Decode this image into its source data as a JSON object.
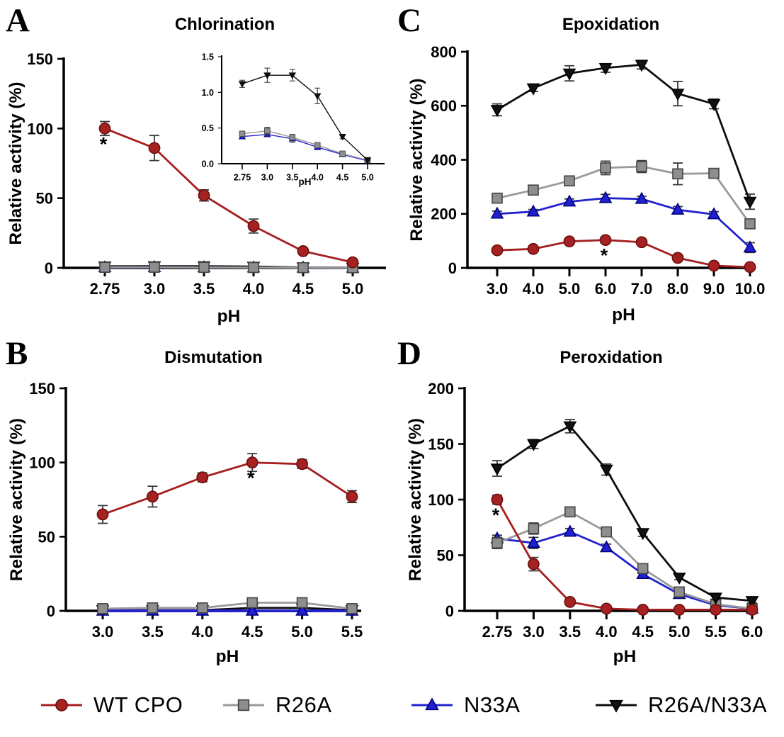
{
  "annotation_symbol": "*",
  "colors": {
    "wt_cpo": {
      "line": "#A41F1F",
      "fill": "#A62121",
      "stroke": "#6B0F0F"
    },
    "r26a": {
      "line": "#9A9A9A",
      "fill": "#8E8E8E",
      "stroke": "#454545"
    },
    "n33a": {
      "line": "#2222CE",
      "fill": "#2121D1",
      "stroke": "#000078"
    },
    "r26a_n33a": {
      "line": "#0D0D0D",
      "fill": "#111111",
      "stroke": "#000000"
    },
    "error_bar": "#3A3A3A",
    "axis": "#000000"
  },
  "legend": {
    "items": [
      {
        "label": "WT CPO",
        "color": "wt_cpo",
        "marker": "circle"
      },
      {
        "label": "R26A",
        "color": "r26a",
        "marker": "square"
      },
      {
        "label": "N33A",
        "color": "n33a",
        "marker": "triangle-up"
      },
      {
        "label": "R26A/N33A",
        "color": "r26a_n33a",
        "marker": "triangle-down"
      }
    ]
  },
  "chart_data": [
    {
      "panel": "A",
      "type": "line",
      "title": "Chlorination",
      "xlabel": "pH",
      "ylabel": "Relative activity (%)",
      "x_tick_labels": [
        "2.75",
        "3.0",
        "3.5",
        "4.0",
        "4.5",
        "5.0"
      ],
      "ylim": [
        0,
        150
      ],
      "y_ticks": [
        0,
        50,
        100,
        150
      ],
      "y_tick_labels": [
        "0",
        "50",
        "100",
        "150"
      ],
      "grid": false,
      "legend_position": "bottom-shared",
      "series": [
        {
          "name": "R26A/N33A",
          "color": "r26a_n33a",
          "marker": "triangle-down",
          "values": [
            1.12,
            1.24,
            1.24,
            0.95,
            0.38,
            0.05
          ],
          "errors": [
            0,
            0,
            0,
            0,
            0,
            0
          ]
        },
        {
          "name": "N33A",
          "color": "n33a",
          "marker": "triangle-up",
          "values": [
            0.38,
            0.41,
            0.35,
            0.23,
            0.13,
            0.04
          ],
          "errors": [
            0,
            0,
            0,
            0,
            0,
            0
          ]
        },
        {
          "name": "R26A",
          "color": "r26a",
          "marker": "square",
          "values": [
            0.42,
            0.46,
            0.37,
            0.26,
            0.14,
            0.05
          ],
          "errors": [
            0,
            0,
            0,
            0,
            0,
            0
          ]
        },
        {
          "name": "WT CPO",
          "color": "wt_cpo",
          "marker": "circle",
          "values": [
            100,
            86,
            52,
            30,
            12,
            4
          ],
          "errors": [
            5,
            9,
            4,
            5,
            2,
            1.5
          ],
          "asterisk_at": 0
        }
      ],
      "inset": {
        "type": "line",
        "xlabel": "pH",
        "x_tick_labels": [
          "2.75",
          "3.0",
          "3.5",
          "4.0",
          "4.5",
          "5.0"
        ],
        "ylim": [
          0,
          1.5
        ],
        "y_ticks": [
          0,
          0.5,
          1.0,
          1.5
        ],
        "y_tick_labels": [
          "0.0",
          "0.5",
          "1.0",
          "1.5"
        ],
        "series": [
          {
            "name": "N33A",
            "color": "n33a",
            "marker": "triangle-up",
            "values": [
              0.38,
              0.41,
              0.35,
              0.23,
              0.13,
              0.04
            ],
            "errors": [
              0.02,
              0.03,
              0.05,
              0.02,
              0.01,
              0.01
            ]
          },
          {
            "name": "R26A",
            "color": "r26a",
            "marker": "square",
            "values": [
              0.42,
              0.46,
              0.37,
              0.26,
              0.14,
              0.05
            ],
            "errors": [
              0.03,
              0.05,
              0.04,
              0.03,
              0.02,
              0.01
            ]
          },
          {
            "name": "R26A/N33A",
            "color": "r26a_n33a",
            "marker": "triangle-down",
            "values": [
              1.12,
              1.24,
              1.24,
              0.95,
              0.38,
              0.05
            ],
            "errors": [
              0.05,
              0.1,
              0.08,
              0.11,
              0.03,
              0.01
            ]
          }
        ]
      }
    },
    {
      "panel": "B",
      "type": "line",
      "title": "Dismutation",
      "xlabel": "pH",
      "ylabel": "Relative activity (%)",
      "x_tick_labels": [
        "3.0",
        "3.5",
        "4.0",
        "4.5",
        "5.0",
        "5.5"
      ],
      "ylim": [
        0,
        150
      ],
      "y_ticks": [
        0,
        50,
        100,
        150
      ],
      "y_tick_labels": [
        "0",
        "50",
        "100",
        "150"
      ],
      "grid": false,
      "series": [
        {
          "name": "R26A/N33A",
          "color": "r26a_n33a",
          "marker": "triangle-down",
          "values": [
            0.5,
            0.5,
            0.5,
            2,
            2,
            0.5
          ],
          "errors": [
            0,
            0,
            0,
            0,
            0,
            0
          ]
        },
        {
          "name": "N33A",
          "color": "n33a",
          "marker": "triangle-up",
          "values": [
            0,
            0,
            0,
            0,
            0,
            0
          ],
          "errors": [
            0,
            0,
            0,
            0,
            0,
            0
          ],
          "thick": 1.4
        },
        {
          "name": "R26A",
          "color": "r26a",
          "marker": "square",
          "values": [
            1.5,
            2,
            2,
            5.5,
            5.5,
            1.5
          ],
          "errors": [
            1.5,
            1.5,
            1.5,
            2,
            2,
            1.5
          ]
        },
        {
          "name": "WT CPO",
          "color": "wt_cpo",
          "marker": "circle",
          "values": [
            65,
            77,
            90,
            100,
            99,
            77
          ],
          "errors": [
            6,
            7,
            3,
            6,
            3,
            4
          ],
          "asterisk_at": 3
        }
      ]
    },
    {
      "panel": "C",
      "type": "line",
      "title": "Epoxidation",
      "xlabel": "pH",
      "ylabel": "Relative activity (%)",
      "x_tick_labels": [
        "3.0",
        "4.0",
        "5.0",
        "6.0",
        "7.0",
        "8.0",
        "9.0",
        "10.0"
      ],
      "ylim": [
        0,
        800
      ],
      "y_ticks": [
        0,
        200,
        400,
        600,
        800
      ],
      "y_tick_labels": [
        "0",
        "200",
        "400",
        "600",
        "800"
      ],
      "grid": false,
      "series": [
        {
          "name": "R26A/N33A",
          "color": "r26a_n33a",
          "marker": "triangle-down",
          "values": [
            585,
            665,
            720,
            740,
            752,
            645,
            607,
            245
          ],
          "errors": [
            22,
            12,
            28,
            16,
            16,
            45,
            18,
            28
          ]
        },
        {
          "name": "R26A",
          "color": "r26a",
          "marker": "square",
          "values": [
            258,
            288,
            322,
            370,
            375,
            348,
            350,
            163
          ],
          "errors": [
            12,
            10,
            12,
            25,
            22,
            40,
            10,
            12
          ]
        },
        {
          "name": "N33A",
          "color": "n33a",
          "marker": "triangle-up",
          "values": [
            200,
            208,
            245,
            258,
            255,
            215,
            198,
            75
          ],
          "errors": [
            10,
            8,
            10,
            14,
            10,
            12,
            10,
            18
          ]
        },
        {
          "name": "WT CPO",
          "color": "wt_cpo",
          "marker": "circle",
          "values": [
            65,
            70,
            98,
            103,
            95,
            37,
            8,
            3
          ],
          "errors": [
            5,
            5,
            6,
            8,
            6,
            10,
            3,
            2
          ],
          "asterisk_at": 3
        }
      ]
    },
    {
      "panel": "D",
      "type": "line",
      "title": "Peroxidation",
      "xlabel": "pH",
      "ylabel": "Relative activity (%)",
      "x_tick_labels": [
        "2.75",
        "3.0",
        "3.5",
        "4.0",
        "4.5",
        "5.0",
        "5.5",
        "6.0"
      ],
      "ylim": [
        0,
        200
      ],
      "y_ticks": [
        0,
        50,
        100,
        150,
        200
      ],
      "y_tick_labels": [
        "0",
        "50",
        "100",
        "150",
        "200"
      ],
      "grid": false,
      "series": [
        {
          "name": "N33A",
          "color": "n33a",
          "marker": "triangle-up",
          "values": [
            65,
            61,
            71,
            57,
            33,
            15,
            5,
            2
          ],
          "errors": [
            3,
            5,
            3,
            3,
            2,
            2,
            1,
            1
          ]
        },
        {
          "name": "R26A",
          "color": "r26a",
          "marker": "square",
          "values": [
            61,
            74,
            89,
            71,
            38,
            17,
            6,
            2
          ],
          "errors": [
            5,
            5,
            3,
            4,
            3,
            2,
            2,
            1
          ]
        },
        {
          "name": "R26A/N33A",
          "color": "r26a_n33a",
          "marker": "triangle-down",
          "values": [
            128,
            150,
            166,
            127,
            70,
            30,
            12,
            9
          ],
          "errors": [
            7,
            4,
            6,
            5,
            3,
            2,
            2,
            2
          ]
        },
        {
          "name": "WT CPO",
          "color": "wt_cpo",
          "marker": "circle",
          "values": [
            100,
            42,
            8,
            2,
            1,
            1,
            1,
            1
          ],
          "errors": [
            4,
            6,
            2,
            1,
            0,
            0,
            0,
            0
          ],
          "asterisk_at": 0
        }
      ]
    }
  ]
}
